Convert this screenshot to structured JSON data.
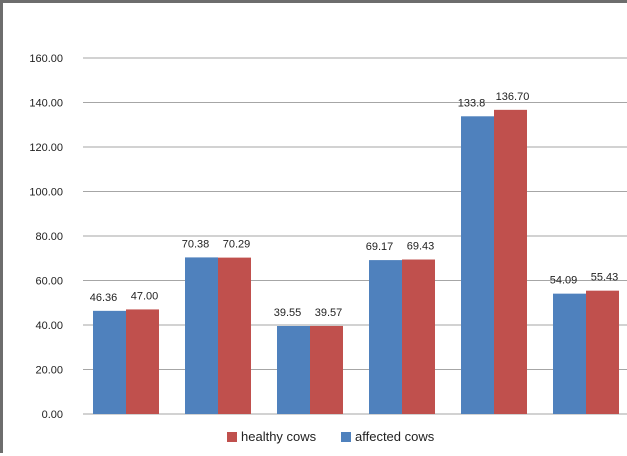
{
  "chart_data": {
    "type": "bar",
    "categories": [
      "",
      "",
      "",
      "",
      "",
      ""
    ],
    "series": [
      {
        "name": "affected cows",
        "color": "#4f81bd",
        "values": [
          46.36,
          70.38,
          39.55,
          69.17,
          133.8,
          54.09
        ],
        "labels": [
          "46.36",
          "70.38",
          "39.55",
          "69.17",
          "133.8",
          "54.09"
        ]
      },
      {
        "name": "healthy cows",
        "color": "#c0504d",
        "values": [
          47.0,
          70.29,
          39.57,
          69.43,
          136.7,
          55.43
        ],
        "labels": [
          "47.00",
          "70.29",
          "39.57",
          "69.43",
          "136.70",
          "55.43"
        ]
      }
    ],
    "yticks": [
      "0.00",
      "20.00",
      "40.00",
      "60.00",
      "80.00",
      "100.00",
      "120.00",
      "140.00",
      "160.00"
    ],
    "ylim": [
      0,
      160
    ],
    "grid": true,
    "legend": {
      "placement": "bottom-center",
      "order": [
        "healthy cows",
        "affected cows"
      ]
    }
  }
}
